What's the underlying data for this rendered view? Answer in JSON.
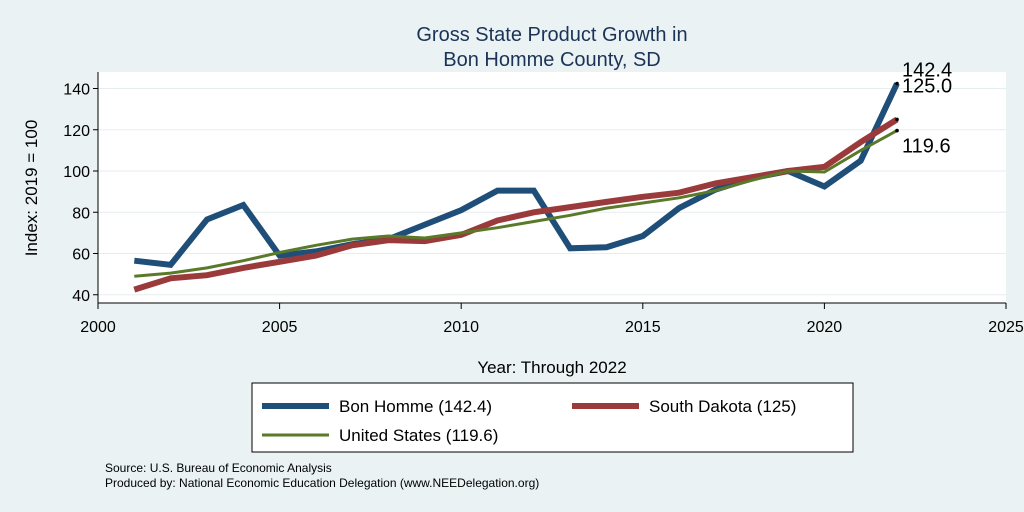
{
  "chart_data": {
    "type": "line",
    "title": [
      "Gross State Product Growth in",
      "Bon Homme County, SD"
    ],
    "xlabel": "Year: Through 2022",
    "ylabel": "Index: 2019 = 100",
    "xlim": [
      2000,
      2025
    ],
    "ylim": [
      36,
      148
    ],
    "xticks": [
      2000,
      2005,
      2010,
      2015,
      2020,
      2025
    ],
    "yticks": [
      40,
      60,
      80,
      100,
      120,
      140
    ],
    "grid": true,
    "legend_position": "bottom",
    "x": [
      2001,
      2002,
      2003,
      2004,
      2005,
      2006,
      2007,
      2008,
      2009,
      2010,
      2011,
      2012,
      2013,
      2014,
      2015,
      2016,
      2017,
      2018,
      2019,
      2020,
      2021,
      2022
    ],
    "series": [
      {
        "name": "Bon Homme  (142.4)",
        "color": "#1f4e79",
        "width": 6,
        "values": [
          56.5,
          54.5,
          76.5,
          83.5,
          59,
          61,
          64.5,
          67,
          74,
          81,
          90.5,
          90.5,
          62.5,
          63,
          68.5,
          82,
          91,
          96.5,
          100,
          92.5,
          105,
          142.4
        ],
        "end_label": "142.4"
      },
      {
        "name": "South Dakota (125)",
        "color": "#9b3a3a",
        "width": 6,
        "values": [
          42.5,
          48,
          49.5,
          53,
          56,
          59,
          64,
          66.5,
          66,
          69,
          76,
          80,
          82.5,
          85,
          87.5,
          89.5,
          94,
          97,
          100,
          102,
          114,
          125.0
        ],
        "end_label": "125.0"
      },
      {
        "name": "United States (119.6)",
        "color": "#5a7a2a",
        "width": 3,
        "values": [
          49,
          50.5,
          53,
          56.5,
          60.5,
          64,
          67,
          68.5,
          67.5,
          70,
          72.5,
          75.5,
          78.5,
          82,
          84.5,
          87,
          90.5,
          95.5,
          100,
          99.5,
          110,
          119.6
        ],
        "end_label": "119.6"
      }
    ]
  },
  "footer": {
    "source": "Source: U.S. Bureau of Economic Analysis",
    "produced": "Produced by: National Economic Education Delegation (www.NEEDelegation.org)"
  }
}
